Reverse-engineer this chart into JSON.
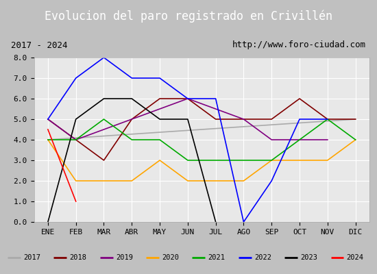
{
  "title": "Evolucion del paro registrado en Crivillen",
  "title_accent": "Evolucion del paro registrado en Crivillén",
  "subtitle_left": "2017 - 2024",
  "subtitle_right": "http://www.foro-ciudad.com",
  "months": [
    "ENE",
    "FEB",
    "MAR",
    "ABR",
    "MAY",
    "JUN",
    "JUL",
    "AGO",
    "SEP",
    "OCT",
    "NOV",
    "DIC"
  ],
  "series": {
    "2017": {
      "color": "#aaaaaa",
      "data": [
        4.0,
        null,
        null,
        null,
        null,
        null,
        null,
        null,
        null,
        null,
        null,
        5.0
      ]
    },
    "2018": {
      "color": "#800000",
      "data": [
        5.0,
        4.0,
        3.0,
        5.0,
        6.0,
        6.0,
        5.0,
        5.0,
        5.0,
        6.0,
        5.0,
        5.0
      ]
    },
    "2019": {
      "color": "#800080",
      "data": [
        5.0,
        4.0,
        null,
        null,
        null,
        6.0,
        5.5,
        5.0,
        4.0,
        4.0,
        4.0,
        null
      ]
    },
    "2020": {
      "color": "#ffa500",
      "data": [
        4.0,
        2.0,
        2.0,
        2.0,
        3.0,
        2.0,
        2.0,
        2.0,
        3.0,
        3.0,
        3.0,
        4.0
      ]
    },
    "2021": {
      "color": "#00aa00",
      "data": [
        4.0,
        4.0,
        5.0,
        4.0,
        4.0,
        3.0,
        3.0,
        3.0,
        3.0,
        4.0,
        5.0,
        4.0
      ]
    },
    "2022": {
      "color": "#0000ff",
      "data": [
        5.0,
        7.0,
        8.0,
        7.0,
        7.0,
        6.0,
        6.0,
        0.0,
        2.0,
        5.0,
        5.0,
        null
      ]
    },
    "2023": {
      "color": "#000000",
      "data": [
        0.0,
        5.0,
        6.0,
        6.0,
        5.0,
        5.0,
        0.0,
        null,
        null,
        null,
        null,
        null
      ]
    },
    "2024": {
      "color": "#ff0000",
      "data": [
        4.5,
        1.0,
        null,
        null,
        null,
        null,
        null,
        null,
        null,
        null,
        null,
        null
      ]
    }
  },
  "ylim": [
    0.0,
    8.0
  ],
  "yticks": [
    0.0,
    1.0,
    2.0,
    3.0,
    4.0,
    5.0,
    6.0,
    7.0,
    8.0
  ],
  "title_bg": "#4472c4",
  "title_color": "#ffffff",
  "title_fontsize": 12,
  "plot_bg": "#e8e8e8",
  "header_bg": "#ffffff",
  "legend_bg": "#d8d8d8",
  "grid_color": "#ffffff"
}
